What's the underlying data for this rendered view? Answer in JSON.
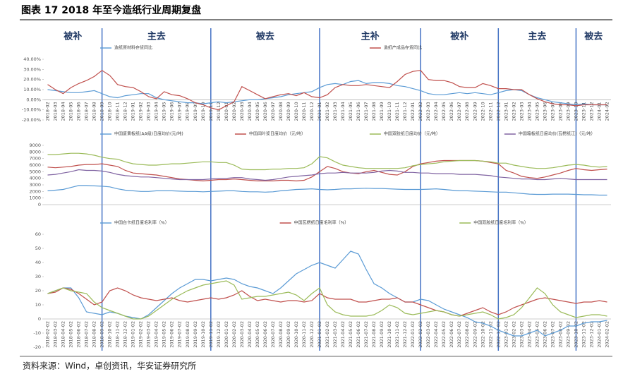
{
  "title": "图表 17 2018 年至今造纸行业周期复盘",
  "source": "资料来源：Wind，卓创资讯，华安证券研究所",
  "phases": {
    "labels": [
      "被补",
      "主去",
      "被去",
      "主补",
      "被补",
      "主去",
      "被去"
    ],
    "boundaries": [
      "2018-09",
      "2019-11",
      "2021-01",
      "2022-02",
      "2022-12",
      "2023-10"
    ]
  },
  "chart_data": [
    {
      "type": "line",
      "categories": [
        "2018-02",
        "2018-03",
        "2018-04",
        "2018-05",
        "2018-06",
        "2018-07",
        "2018-08",
        "2018-09",
        "2018-10",
        "2018-11",
        "2018-12",
        "2019-01",
        "2019-02",
        "2019-03",
        "2019-04",
        "2019-05",
        "2019-06",
        "2019-07",
        "2019-08",
        "2019-09",
        "2019-10",
        "2019-11",
        "2019-12",
        "2020-01",
        "2020-02",
        "2020-03",
        "2020-04",
        "2020-05",
        "2020-06",
        "2020-07",
        "2020-08",
        "2020-09",
        "2020-10",
        "2020-11",
        "2020-12",
        "2021-01",
        "2021-02",
        "2021-03",
        "2021-04",
        "2021-05",
        "2021-06",
        "2021-07",
        "2021-08",
        "2021-09",
        "2021-10",
        "2021-11",
        "2021-12",
        "2022-01",
        "2022-02",
        "2022-03",
        "2022-04",
        "2022-05",
        "2022-06",
        "2022-07",
        "2022-08",
        "2022-09",
        "2022-10",
        "2022-11",
        "2022-12",
        "2023-01",
        "2023-02",
        "2023-03",
        "2023-04",
        "2023-05",
        "2023-06",
        "2023-07",
        "2023-08",
        "2023-09",
        "2023-10",
        "2023-11",
        "2023-12",
        "2024-01",
        "2024-02"
      ],
      "ylim": [
        -20,
        40
      ],
      "yticks": [
        {
          "value": -20,
          "label": "-20.00%"
        },
        {
          "value": -10,
          "label": "-10.00%"
        },
        {
          "value": 0,
          "label": "0.00%"
        },
        {
          "value": 10,
          "label": "10.00%"
        },
        {
          "value": 20,
          "label": "20.00%"
        },
        {
          "value": 30,
          "label": "30.00%"
        },
        {
          "value": 40,
          "label": "40.00%"
        }
      ],
      "series": [
        {
          "name": "造纸原材料存货同比",
          "color": "#5b9bd5",
          "values": [
            10,
            9,
            8,
            7,
            7,
            8,
            9,
            6,
            3,
            2,
            4,
            5,
            6,
            6,
            2,
            0,
            -1,
            -2,
            -3,
            -3,
            -4,
            -3,
            -2,
            -3,
            -2,
            -1,
            0,
            0,
            1,
            2,
            3,
            5,
            6,
            7,
            8,
            12,
            15,
            16,
            15,
            18,
            19,
            16,
            17,
            17,
            16,
            14,
            13,
            11,
            9,
            6,
            5,
            5,
            6,
            7,
            6,
            7,
            6,
            5,
            7,
            9,
            10,
            9,
            5,
            2,
            0,
            -2,
            -3,
            -4,
            -5,
            -4,
            -5,
            -5,
            -5
          ]
        },
        {
          "name": "造纸产成品存货同比",
          "color": "#c0504d",
          "values": [
            15,
            10,
            6,
            12,
            16,
            19,
            23,
            29,
            24,
            15,
            13,
            12,
            8,
            3,
            1,
            8,
            5,
            4,
            1,
            -3,
            -5,
            -8,
            -10,
            -6,
            -2,
            13,
            9,
            5,
            1,
            3,
            5,
            6,
            4,
            7,
            3,
            2,
            5,
            12,
            15,
            14,
            14,
            15,
            14,
            13,
            12,
            18,
            25,
            28,
            29,
            20,
            19,
            19,
            17,
            13,
            12,
            12,
            16,
            14,
            11,
            11,
            10,
            10,
            5,
            1,
            -2,
            -4,
            -5,
            -5,
            -6,
            -5,
            -5,
            -5,
            -5
          ]
        }
      ]
    },
    {
      "type": "line",
      "categories": [
        "2018-02",
        "2018-03",
        "2018-04",
        "2018-05",
        "2018-06",
        "2018-07",
        "2018-08",
        "2018-09",
        "2018-10",
        "2018-11",
        "2018-12",
        "2019-01",
        "2019-02",
        "2019-03",
        "2019-04",
        "2019-05",
        "2019-06",
        "2019-07",
        "2019-08",
        "2019-09",
        "2019-10",
        "2019-11",
        "2019-12",
        "2020-01",
        "2020-02",
        "2020-03",
        "2020-04",
        "2020-05",
        "2020-06",
        "2020-07",
        "2020-08",
        "2020-09",
        "2020-10",
        "2020-11",
        "2020-12",
        "2021-01",
        "2021-02",
        "2021-03",
        "2021-04",
        "2021-05",
        "2021-06",
        "2021-07",
        "2021-08",
        "2021-09",
        "2021-10",
        "2021-11",
        "2021-12",
        "2022-01",
        "2022-02",
        "2022-03",
        "2022-04",
        "2022-05",
        "2022-06",
        "2022-07",
        "2022-08",
        "2022-09",
        "2022-10",
        "2022-11",
        "2022-12",
        "2023-01",
        "2023-02",
        "2023-03",
        "2023-04",
        "2023-05",
        "2023-06",
        "2023-07",
        "2023-08",
        "2023-09",
        "2023-10",
        "2023-11",
        "2023-12",
        "2024-01",
        "2024-02"
      ],
      "show_x_labels": false,
      "ylim": [
        0,
        9000
      ],
      "yticks": [
        0,
        1000,
        2000,
        3000,
        4000,
        5000,
        6000,
        7000,
        8000,
        9000
      ],
      "series": [
        {
          "name": "中国废黄板纸(AA级)日度均价(元/吨)",
          "color": "#5b9bd5",
          "values": [
            2100,
            2200,
            2300,
            2600,
            2900,
            2900,
            2850,
            2800,
            2700,
            2400,
            2200,
            2100,
            2000,
            2000,
            2100,
            2100,
            2100,
            2050,
            2000,
            2000,
            1950,
            2000,
            2050,
            2100,
            2100,
            2000,
            1950,
            1950,
            1900,
            1950,
            2100,
            2200,
            2300,
            2350,
            2400,
            2300,
            2250,
            2300,
            2400,
            2400,
            2450,
            2500,
            2450,
            2450,
            2400,
            2350,
            2300,
            2300,
            2300,
            2350,
            2400,
            2300,
            2200,
            2100,
            2100,
            2050,
            2000,
            1950,
            1900,
            1900,
            1800,
            1700,
            1600,
            1550,
            1550,
            1600,
            1600,
            1600,
            1550,
            1500,
            1500,
            1450,
            1450
          ]
        },
        {
          "name": "中国阔叶浆日度均价（元/吨）",
          "color": "#c0504d",
          "values": [
            5700,
            5600,
            5700,
            5800,
            6000,
            6100,
            6100,
            6200,
            6000,
            5800,
            5200,
            4800,
            4700,
            4600,
            4500,
            4300,
            4100,
            3900,
            3800,
            3700,
            3600,
            3700,
            3800,
            3800,
            3900,
            3800,
            3700,
            3600,
            3600,
            3600,
            3700,
            3700,
            3600,
            3700,
            4200,
            5000,
            5800,
            5500,
            5000,
            4800,
            4700,
            5000,
            5200,
            4900,
            4600,
            4500,
            5000,
            5800,
            6200,
            6400,
            6600,
            6700,
            6700,
            6700,
            6700,
            6700,
            6600,
            6400,
            6200,
            5200,
            4800,
            4300,
            4100,
            4000,
            4200,
            4500,
            4800,
            5200,
            5500,
            5300,
            5200,
            5300,
            5400
          ]
        },
        {
          "name": "中国双胶纸日度均价（元/吨）",
          "color": "#9bbb59",
          "values": [
            7600,
            7600,
            7700,
            7800,
            7800,
            7700,
            7500,
            7200,
            7000,
            6900,
            6500,
            6200,
            6100,
            6000,
            6000,
            6100,
            6200,
            6200,
            6300,
            6400,
            6500,
            6500,
            6400,
            6400,
            6000,
            5400,
            5300,
            5300,
            5300,
            5400,
            5400,
            5500,
            5500,
            5600,
            6200,
            7300,
            7100,
            6500,
            6000,
            5800,
            5600,
            5500,
            5500,
            5500,
            5500,
            5500,
            5600,
            5900,
            6100,
            6200,
            6300,
            6500,
            6600,
            6700,
            6700,
            6700,
            6600,
            6500,
            6300,
            6300,
            6000,
            5800,
            5600,
            5500,
            5500,
            5600,
            5800,
            6000,
            6100,
            6000,
            5800,
            5700,
            5800
          ]
        },
        {
          "name": "中国箱板纸日度均价(瓦楞纸江)（元/吨）",
          "color": "#8064a2",
          "values": [
            4500,
            4600,
            4800,
            5000,
            5300,
            5200,
            5200,
            5100,
            4900,
            4600,
            4400,
            4300,
            4200,
            4200,
            4100,
            4000,
            3900,
            3800,
            3800,
            3800,
            3800,
            3900,
            4000,
            4000,
            4100,
            4100,
            3900,
            3800,
            3700,
            3800,
            4000,
            4200,
            4300,
            4400,
            4500,
            4700,
            4800,
            4800,
            4900,
            4800,
            4800,
            4800,
            4900,
            5100,
            5200,
            5100,
            4900,
            4900,
            4800,
            4800,
            4700,
            4700,
            4700,
            4600,
            4600,
            4600,
            4500,
            4400,
            4200,
            4100,
            4000,
            3900,
            3900,
            3800,
            3800,
            3900,
            4000,
            3900,
            3800,
            3800,
            3800,
            3800,
            3800
          ]
        }
      ]
    },
    {
      "type": "line",
      "categories": [
        "2018-02-02",
        "2018-03-02",
        "2018-04-02",
        "2018-05-02",
        "2018-06-02",
        "2018-07-02",
        "2018-08-02",
        "2018-09-02",
        "2018-10-02",
        "2018-11-02",
        "2018-12-02",
        "2019-01-02",
        "2019-02-02",
        "2019-03-02",
        "2019-04-02",
        "2019-05-02",
        "2019-06-02",
        "2019-07-02",
        "2019-08-02",
        "2019-09-02",
        "2019-10-02",
        "2019-11-02",
        "2019-12-02",
        "2020-01-02",
        "2020-02-02",
        "2020-03-02",
        "2020-04-02",
        "2020-05-02",
        "2020-06-02",
        "2020-07-02",
        "2020-08-02",
        "2020-09-02",
        "2020-10-02",
        "2020-11-02",
        "2020-12-02",
        "2021-01-02",
        "2021-02-02",
        "2021-03-02",
        "2021-04-02",
        "2021-05-02",
        "2021-06-02",
        "2021-07-02",
        "2021-08-02",
        "2021-09-02",
        "2021-10-02",
        "2021-11-02",
        "2021-12-02",
        "2022-01-02",
        "2022-02-02",
        "2022-03-02",
        "2022-04-02",
        "2022-05-02",
        "2022-06-02",
        "2022-07-02",
        "2022-08-02",
        "2022-09-02",
        "2022-10-02",
        "2022-11-02",
        "2022-12-02",
        "2023-01-02",
        "2023-02-02",
        "2023-03-02",
        "2023-04-02",
        "2023-05-02",
        "2023-06-02",
        "2023-07-02",
        "2023-08-02",
        "2023-09-02",
        "2023-10-02",
        "2023-11-02",
        "2023-12-02",
        "2024-01-02",
        "2024-02-02"
      ],
      "ylim": [
        -20,
        60
      ],
      "yticks": [
        -20,
        -10,
        0,
        10,
        20,
        30,
        40,
        50,
        60
      ],
      "series": [
        {
          "name": "中国白卡纸日度毛利率（%）",
          "color": "#5b9bd5",
          "values": [
            18,
            20,
            22,
            22,
            15,
            5,
            4,
            3,
            5,
            4,
            2,
            1,
            0,
            3,
            8,
            13,
            18,
            22,
            25,
            28,
            28,
            27,
            28,
            29,
            28,
            25,
            23,
            22,
            20,
            18,
            22,
            27,
            32,
            35,
            38,
            40,
            38,
            36,
            42,
            48,
            46,
            35,
            25,
            22,
            18,
            15,
            12,
            12,
            14,
            13,
            10,
            7,
            5,
            3,
            1,
            -2,
            -3,
            -5,
            -8,
            -10,
            -12,
            -12,
            -10,
            -8,
            -12,
            -10,
            -8,
            -5,
            -5,
            -3,
            -2,
            -2,
            -1
          ]
        },
        {
          "name": "中国瓦楞纸日度毛利率（%）",
          "color": "#c0504d",
          "values": [
            18,
            19,
            22,
            21,
            18,
            14,
            10,
            12,
            20,
            22,
            20,
            17,
            15,
            14,
            13,
            14,
            15,
            13,
            12,
            13,
            14,
            15,
            14,
            15,
            17,
            20,
            16,
            13,
            14,
            13,
            12,
            13,
            13,
            12,
            13,
            18,
            15,
            14,
            14,
            14,
            12,
            12,
            13,
            14,
            14,
            15,
            12,
            12,
            10,
            8,
            6,
            5,
            3,
            2,
            4,
            6,
            8,
            5,
            3,
            5,
            8,
            10,
            12,
            14,
            15,
            14,
            13,
            12,
            11,
            12,
            12,
            13,
            12
          ]
        },
        {
          "name": "中国双胶纸日度毛利率（%）",
          "color": "#9bbb59",
          "values": [
            18,
            20,
            22,
            20,
            19,
            18,
            12,
            8,
            6,
            4,
            2,
            0,
            0,
            2,
            6,
            10,
            14,
            17,
            20,
            22,
            24,
            25,
            26,
            27,
            24,
            14,
            15,
            16,
            16,
            17,
            18,
            19,
            17,
            13,
            18,
            22,
            10,
            5,
            3,
            2,
            2,
            2,
            3,
            6,
            10,
            8,
            4,
            3,
            4,
            5,
            6,
            5,
            3,
            2,
            3,
            4,
            5,
            3,
            0,
            1,
            3,
            8,
            15,
            22,
            18,
            10,
            5,
            3,
            1,
            2,
            3,
            3,
            2
          ]
        }
      ]
    }
  ]
}
